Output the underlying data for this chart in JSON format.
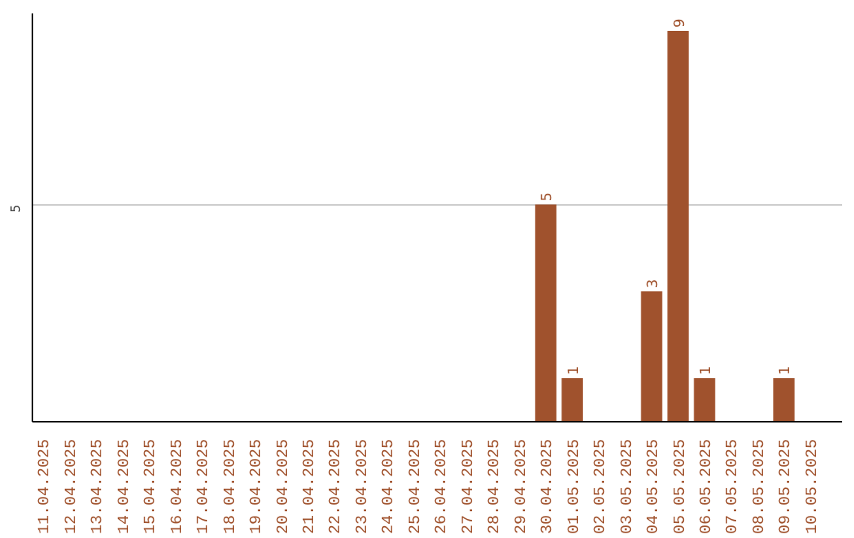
{
  "chart_data": {
    "type": "bar",
    "categories": [
      "11.04.2025",
      "12.04.2025",
      "13.04.2025",
      "14.04.2025",
      "15.04.2025",
      "16.04.2025",
      "17.04.2025",
      "18.04.2025",
      "19.04.2025",
      "20.04.2025",
      "21.04.2025",
      "22.04.2025",
      "23.04.2025",
      "24.04.2025",
      "25.04.2025",
      "26.04.2025",
      "27.04.2025",
      "28.04.2025",
      "29.04.2025",
      "30.04.2025",
      "01.05.2025",
      "02.05.2025",
      "03.05.2025",
      "04.05.2025",
      "05.05.2025",
      "06.05.2025",
      "07.05.2025",
      "08.05.2025",
      "09.05.2025",
      "10.05.2025"
    ],
    "values": [
      null,
      null,
      null,
      null,
      null,
      null,
      null,
      null,
      null,
      null,
      null,
      null,
      null,
      null,
      null,
      null,
      null,
      null,
      null,
      5,
      1,
      null,
      null,
      3,
      9,
      1,
      null,
      null,
      1,
      null
    ],
    "color": "#a0522d",
    "ylim": [
      0,
      9.4
    ],
    "yticks": [
      5
    ],
    "grid": "y",
    "data_labels": true
  }
}
